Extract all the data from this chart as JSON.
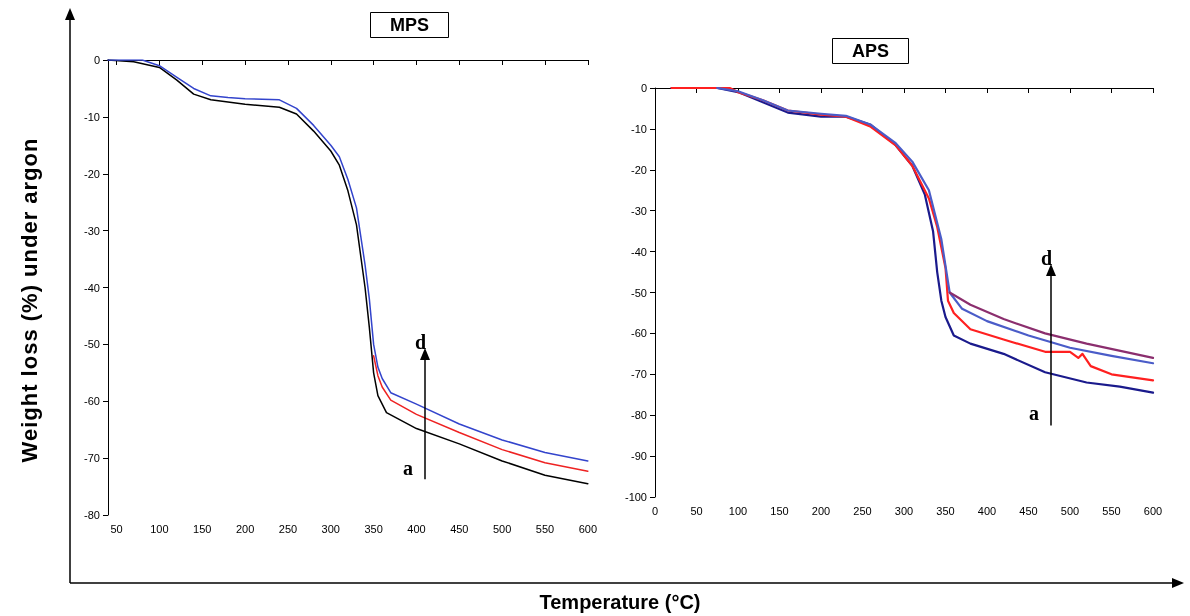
{
  "chart_data": [
    {
      "type": "line",
      "title": "MPS",
      "ylabel": "Weight loss (%) under argon",
      "xlim": [
        40,
        600
      ],
      "xticks": [
        50,
        100,
        150,
        200,
        250,
        300,
        350,
        400,
        450,
        500,
        550,
        600
      ],
      "ylim": [
        -80,
        0
      ],
      "yticks": [
        -80,
        -70,
        -60,
        -50,
        -40,
        -30,
        -20,
        -10,
        0
      ],
      "grid": false,
      "marker": "none",
      "line_style": "solid",
      "annotations": [
        "a",
        "d"
      ],
      "series": [
        {
          "color": "#000000",
          "x": [
            40,
            70,
            100,
            120,
            140,
            160,
            200,
            240,
            260,
            280,
            300,
            310,
            320,
            330,
            340,
            345,
            350,
            355,
            365,
            400,
            450,
            500,
            550,
            600
          ],
          "values": [
            0,
            -0.3,
            -1.3,
            -3.5,
            -6,
            -7,
            -7.8,
            -8.3,
            -9.5,
            -12.5,
            -16,
            -18.5,
            -23,
            -29,
            -40,
            -47,
            -55,
            -59,
            -62,
            -64.8,
            -67.5,
            -70.5,
            -73,
            -74.5
          ]
        },
        {
          "color": "#ee2222",
          "x": [
            350,
            355,
            360,
            370,
            400,
            450,
            500,
            550,
            600
          ],
          "values": [
            -52,
            -55.5,
            -57.5,
            -59.8,
            -62.3,
            -65.5,
            -68.5,
            -70.8,
            -72.3
          ]
        },
        {
          "color": "#3344cc",
          "x": [
            40,
            80,
            100,
            120,
            140,
            160,
            180,
            200,
            240,
            260,
            280,
            300,
            310,
            320,
            330,
            340,
            345,
            350,
            355,
            360,
            370,
            400,
            450,
            500,
            550,
            600
          ],
          "values": [
            0,
            0,
            -1,
            -3,
            -5,
            -6.3,
            -6.6,
            -6.8,
            -7,
            -8.5,
            -11.5,
            -15,
            -17,
            -21,
            -26,
            -36,
            -42,
            -50,
            -54,
            -56,
            -58.5,
            -60.5,
            -64,
            -66.8,
            -69,
            -70.5
          ]
        }
      ]
    },
    {
      "type": "line",
      "title": "APS",
      "xlabel": "Temperature (°C)",
      "xlim": [
        0,
        600
      ],
      "xticks": [
        0,
        50,
        100,
        150,
        200,
        250,
        300,
        350,
        400,
        450,
        500,
        550,
        600
      ],
      "ylim": [
        -100,
        0
      ],
      "yticks": [
        -100,
        -90,
        -80,
        -70,
        -60,
        -50,
        -40,
        -30,
        -20,
        -10,
        0
      ],
      "grid": false,
      "marker": "none",
      "line_style": "solid",
      "annotations": [
        "a",
        "d"
      ],
      "series": [
        {
          "color": "#1a1a8c",
          "x": [
            20,
            75,
            100,
            130,
            160,
            200,
            230,
            260,
            290,
            310,
            325,
            335,
            340,
            345,
            350,
            360,
            380,
            420,
            470,
            520,
            560,
            600
          ],
          "values": [
            0,
            0,
            -1,
            -3.5,
            -6,
            -7,
            -7,
            -9,
            -14,
            -19,
            -26,
            -35,
            -45,
            -52,
            -56,
            -60.5,
            -62.5,
            -65,
            -69.5,
            -72,
            -73,
            -74.5
          ]
        },
        {
          "color": "#ff2020",
          "x": [
            20,
            90,
            100,
            130,
            160,
            200,
            230,
            260,
            290,
            310,
            330,
            340,
            350,
            353,
            360,
            380,
            420,
            470,
            500,
            510,
            515,
            525,
            550,
            600
          ],
          "values": [
            0,
            0,
            -1,
            -3,
            -5.5,
            -6.5,
            -7,
            -9.5,
            -14,
            -19,
            -27,
            -34,
            -44,
            -52,
            -55,
            -59,
            -61.5,
            -64.5,
            -64.5,
            -66,
            -65,
            -68,
            -70,
            -71.5
          ]
        },
        {
          "color": "#4a5cc8",
          "x": [
            75,
            100,
            130,
            160,
            200,
            230,
            260,
            290,
            310,
            330,
            345,
            355,
            370,
            400,
            450,
            500,
            550,
            600
          ],
          "values": [
            0,
            -0.8,
            -3,
            -5.5,
            -6.3,
            -6.8,
            -9,
            -13.5,
            -18,
            -25,
            -37,
            -50,
            -54,
            -57,
            -60.5,
            -63.5,
            -65.5,
            -67.3
          ]
        },
        {
          "color": "#8b2e6e",
          "x": [
            355,
            380,
            420,
            470,
            520,
            600
          ],
          "values": [
            -50,
            -53,
            -56.5,
            -60,
            -62.5,
            -66
          ]
        }
      ]
    }
  ]
}
